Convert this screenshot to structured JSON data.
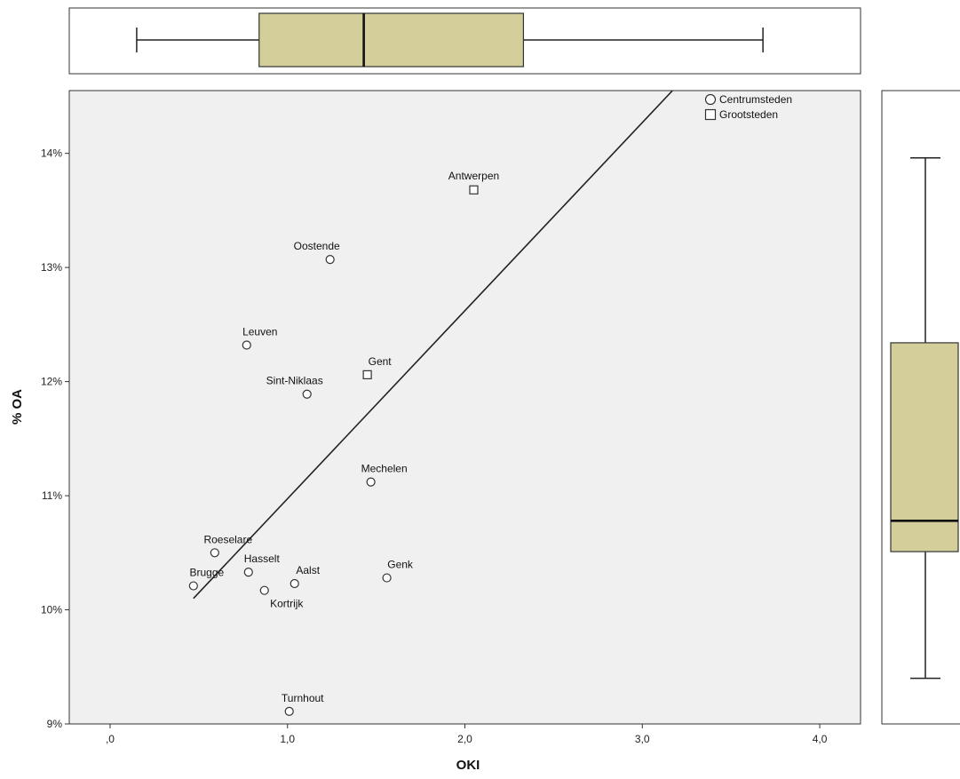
{
  "chart_data": {
    "type": "scatter",
    "xlabel": "OKI",
    "ylabel": "% OA",
    "xlim": [
      -0.23,
      4.23
    ],
    "ylim": [
      9.0,
      14.55
    ],
    "x_ticks": [
      0.0,
      1.0,
      2.0,
      3.0,
      4.0
    ],
    "x_tick_labels": [
      ",0",
      "1,0",
      "2,0",
      "3,0",
      "4,0"
    ],
    "y_ticks": [
      9,
      10,
      11,
      12,
      13,
      14
    ],
    "y_tick_labels": [
      "9%",
      "10%",
      "11%",
      "12%",
      "13%",
      "14%"
    ],
    "legend": {
      "placement": "top-right",
      "entries": [
        {
          "name": "Centrumsteden",
          "marker": "circle"
        },
        {
          "name": "Grootsteden",
          "marker": "square"
        }
      ]
    },
    "points": [
      {
        "label": "Antwerpen",
        "x": 2.05,
        "y": 13.68,
        "group": "Grootsteden"
      },
      {
        "label": "Oostende",
        "x": 1.24,
        "y": 13.07,
        "group": "Centrumsteden"
      },
      {
        "label": "Leuven",
        "x": 0.77,
        "y": 12.32,
        "group": "Centrumsteden"
      },
      {
        "label": "Gent",
        "x": 1.45,
        "y": 12.06,
        "group": "Grootsteden"
      },
      {
        "label": "Sint-Niklaas",
        "x": 1.11,
        "y": 11.89,
        "group": "Centrumsteden"
      },
      {
        "label": "Mechelen",
        "x": 1.47,
        "y": 11.12,
        "group": "Centrumsteden"
      },
      {
        "label": "Roeselare",
        "x": 0.59,
        "y": 10.5,
        "group": "Centrumsteden"
      },
      {
        "label": "Hasselt",
        "x": 0.78,
        "y": 10.33,
        "group": "Centrumsteden"
      },
      {
        "label": "Aalst",
        "x": 1.04,
        "y": 10.23,
        "group": "Centrumsteden"
      },
      {
        "label": "Genk",
        "x": 1.56,
        "y": 10.28,
        "group": "Centrumsteden"
      },
      {
        "label": "Brugge",
        "x": 0.47,
        "y": 10.21,
        "group": "Centrumsteden"
      },
      {
        "label": "Kortrijk",
        "x": 0.87,
        "y": 10.17,
        "group": "Centrumsteden"
      },
      {
        "label": "Turnhout",
        "x": 1.01,
        "y": 9.11,
        "group": "Centrumsteden"
      }
    ],
    "fit_line": {
      "x": [
        0.47,
        3.17
      ],
      "y": [
        10.1,
        14.55
      ]
    },
    "boxplot_x": {
      "min": 0.15,
      "q1": 0.84,
      "median": 1.43,
      "q3": 2.33,
      "max": 3.68
    },
    "boxplot_y": {
      "min": 9.4,
      "q1": 10.51,
      "median": 10.78,
      "q3": 12.34,
      "max": 13.96
    },
    "colors": {
      "plot_background": "#f0f0f0",
      "box_fill": "#d3ce9a",
      "line": "#222222"
    },
    "grid": false
  }
}
